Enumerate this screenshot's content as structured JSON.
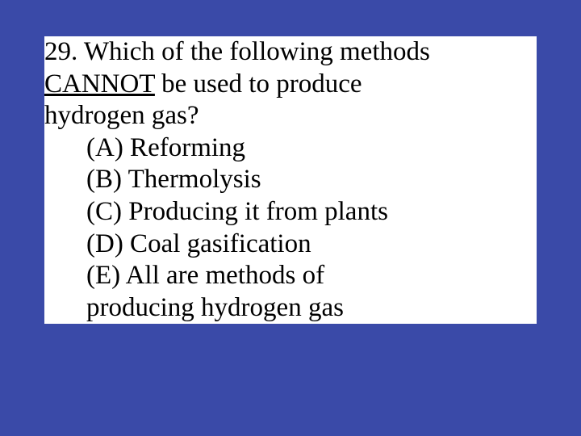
{
  "background_color": "#3a4aa8",
  "textbox_background": "#ffffff",
  "text_color": "#000000",
  "font_family": "Times New Roman",
  "font_size_pt": 33,
  "question": {
    "number": "29.",
    "line1": "29. Which of the following methods",
    "line2_underlined": "CANNOT",
    "line2_rest": " be used to produce",
    "line3": "hydrogen gas?"
  },
  "options": [
    "(A) Reforming",
    "(B) Thermolysis",
    "(C) Producing it from plants",
    "(D) Coal gasification",
    "(E) All are methods of",
    "producing hydrogen gas"
  ]
}
